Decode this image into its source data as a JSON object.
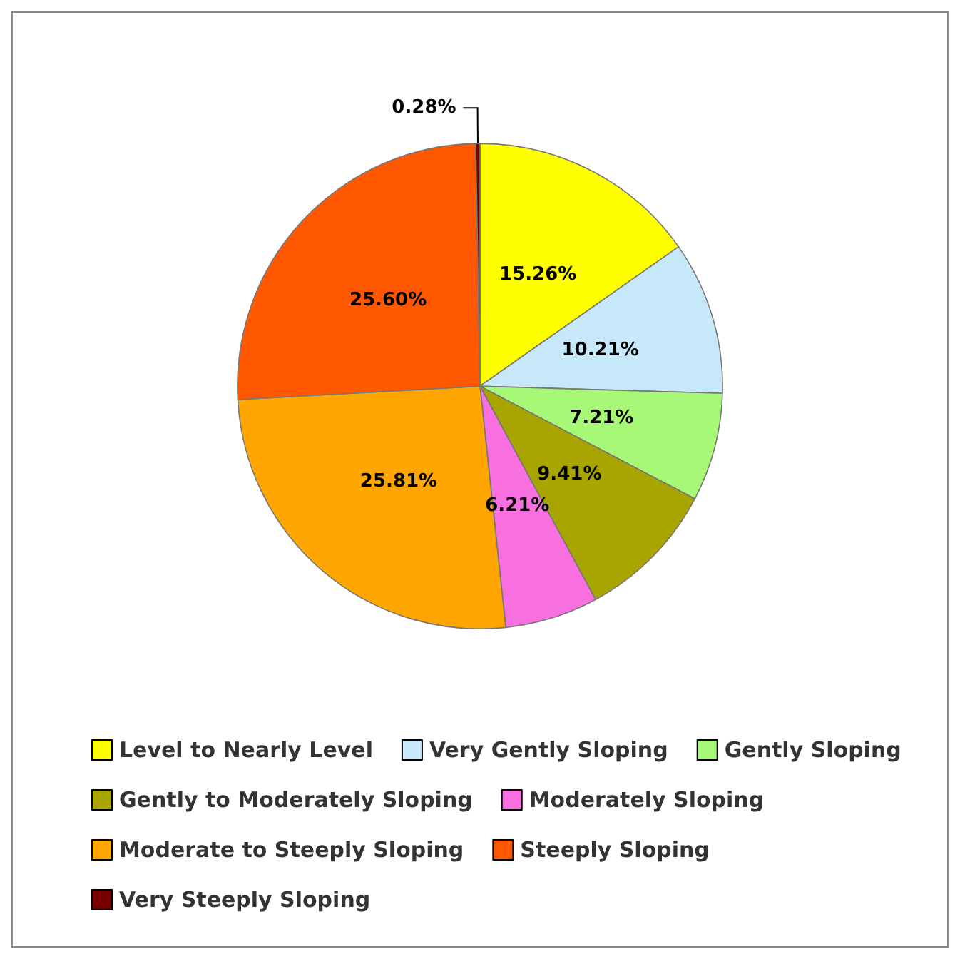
{
  "chart_data": {
    "type": "pie",
    "categories": [
      "Level to Nearly Level",
      "Very Gently Sloping",
      "Gently Sloping",
      "Gently to Moderately Sloping",
      "Moderately Sloping",
      "Moderate to Steeply Sloping",
      "Steeply Sloping",
      "Very Steeply Sloping"
    ],
    "values": [
      15.26,
      10.21,
      7.21,
      9.41,
      6.21,
      25.81,
      25.6,
      0.28
    ],
    "value_labels": [
      "15.26%",
      "10.21%",
      "7.21%",
      "9.41%",
      "6.21%",
      "25.81%",
      "25.60%",
      "0.28%"
    ],
    "colors": [
      "#ffff00",
      "#c6e8f8",
      "#a8f878",
      "#a8a400",
      "#f870e0",
      "#ffa600",
      "#ff5800",
      "#7a0000"
    ],
    "legend": "bottom"
  }
}
